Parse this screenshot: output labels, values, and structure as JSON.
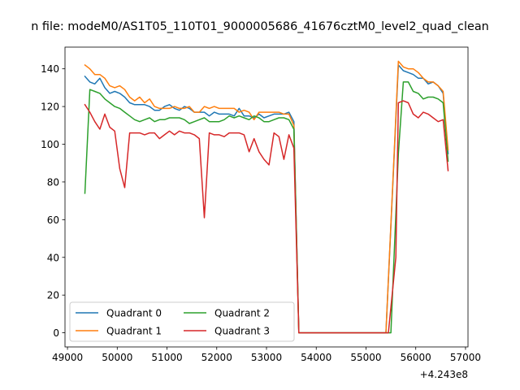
{
  "chart_data": {
    "type": "line",
    "title": "n file: modeM0/AS1T05_110T01_9000005686_41676cztM0_level2_quad_clean",
    "xlabel": "",
    "ylabel": "",
    "x_offset_label": "+4.243e8",
    "xlim": [
      48950,
      57050
    ],
    "ylim": [
      -7.5,
      151.5
    ],
    "x_ticks": [
      49000,
      50000,
      51000,
      52000,
      53000,
      54000,
      55000,
      56000,
      57000
    ],
    "x_tick_labels": [
      "49000",
      "50000",
      "51000",
      "52000",
      "53000",
      "54000",
      "55000",
      "56000",
      "57000"
    ],
    "y_ticks": [
      0,
      20,
      40,
      60,
      80,
      100,
      120,
      140
    ],
    "y_tick_labels": [
      "0",
      "20",
      "40",
      "60",
      "80",
      "100",
      "120",
      "140"
    ],
    "grid": false,
    "legend": {
      "placement": "lower-left",
      "columns": 2
    },
    "series": [
      {
        "name": "Quadrant 0",
        "color": "#1f77b4",
        "points": [
          [
            49350,
            136
          ],
          [
            49450,
            133
          ],
          [
            49550,
            132
          ],
          [
            49650,
            135
          ],
          [
            49750,
            130
          ],
          [
            49850,
            127
          ],
          [
            49950,
            128
          ],
          [
            50050,
            127
          ],
          [
            50150,
            125
          ],
          [
            50250,
            122
          ],
          [
            50350,
            121
          ],
          [
            50450,
            121
          ],
          [
            50550,
            121
          ],
          [
            50650,
            120
          ],
          [
            50750,
            118
          ],
          [
            50850,
            118
          ],
          [
            50950,
            120
          ],
          [
            51050,
            121
          ],
          [
            51150,
            119
          ],
          [
            51250,
            118
          ],
          [
            51350,
            120
          ],
          [
            51450,
            119
          ],
          [
            51550,
            117
          ],
          [
            51650,
            117
          ],
          [
            51750,
            117
          ],
          [
            51850,
            115
          ],
          [
            51950,
            117
          ],
          [
            52050,
            116
          ],
          [
            52150,
            116
          ],
          [
            52250,
            116
          ],
          [
            52350,
            115
          ],
          [
            52450,
            119
          ],
          [
            52550,
            115
          ],
          [
            52650,
            115
          ],
          [
            52750,
            114
          ],
          [
            52850,
            116
          ],
          [
            52950,
            114
          ],
          [
            53050,
            115
          ],
          [
            53150,
            116
          ],
          [
            53250,
            116
          ],
          [
            53350,
            116
          ],
          [
            53450,
            117
          ],
          [
            53550,
            112
          ],
          [
            53650,
            0
          ],
          [
            53800,
            0
          ],
          [
            54000,
            0
          ],
          [
            54200,
            0
          ],
          [
            54400,
            0
          ],
          [
            54600,
            0
          ],
          [
            54800,
            0
          ],
          [
            55000,
            0
          ],
          [
            55200,
            0
          ],
          [
            55400,
            0
          ],
          [
            55650,
            142
          ],
          [
            55750,
            139
          ],
          [
            55850,
            138
          ],
          [
            55950,
            137
          ],
          [
            56050,
            135
          ],
          [
            56150,
            135
          ],
          [
            56250,
            132
          ],
          [
            56350,
            133
          ],
          [
            56450,
            131
          ],
          [
            56550,
            127
          ],
          [
            56650,
            95
          ]
        ]
      },
      {
        "name": "Quadrant 1",
        "color": "#ff7f0e",
        "points": [
          [
            49350,
            142
          ],
          [
            49450,
            140
          ],
          [
            49550,
            137
          ],
          [
            49650,
            137
          ],
          [
            49750,
            135
          ],
          [
            49850,
            131
          ],
          [
            49950,
            130
          ],
          [
            50050,
            131
          ],
          [
            50150,
            129
          ],
          [
            50250,
            125
          ],
          [
            50350,
            123
          ],
          [
            50450,
            125
          ],
          [
            50550,
            122
          ],
          [
            50650,
            124
          ],
          [
            50750,
            120
          ],
          [
            50850,
            119
          ],
          [
            50950,
            119
          ],
          [
            51050,
            119
          ],
          [
            51150,
            120
          ],
          [
            51250,
            119
          ],
          [
            51350,
            119
          ],
          [
            51450,
            120
          ],
          [
            51550,
            117
          ],
          [
            51650,
            117
          ],
          [
            51750,
            120
          ],
          [
            51850,
            119
          ],
          [
            51950,
            120
          ],
          [
            52050,
            119
          ],
          [
            52150,
            119
          ],
          [
            52250,
            119
          ],
          [
            52350,
            119
          ],
          [
            52450,
            117
          ],
          [
            52550,
            118
          ],
          [
            52650,
            117
          ],
          [
            52750,
            113
          ],
          [
            52850,
            117
          ],
          [
            52950,
            117
          ],
          [
            53050,
            117
          ],
          [
            53150,
            117
          ],
          [
            53250,
            117
          ],
          [
            53350,
            116
          ],
          [
            53450,
            116
          ],
          [
            53550,
            110
          ],
          [
            53650,
            0
          ],
          [
            53800,
            0
          ],
          [
            54000,
            0
          ],
          [
            54200,
            0
          ],
          [
            54400,
            0
          ],
          [
            54600,
            0
          ],
          [
            54800,
            0
          ],
          [
            55000,
            0
          ],
          [
            55200,
            0
          ],
          [
            55400,
            0
          ],
          [
            55650,
            144
          ],
          [
            55750,
            141
          ],
          [
            55850,
            140
          ],
          [
            55950,
            140
          ],
          [
            56050,
            138
          ],
          [
            56150,
            135
          ],
          [
            56250,
            133
          ],
          [
            56350,
            133
          ],
          [
            56450,
            131
          ],
          [
            56550,
            128
          ],
          [
            56650,
            97
          ]
        ]
      },
      {
        "name": "Quadrant 2",
        "color": "#2ca02c",
        "points": [
          [
            49350,
            74
          ],
          [
            49450,
            129
          ],
          [
            49550,
            128
          ],
          [
            49650,
            127
          ],
          [
            49750,
            124
          ],
          [
            49850,
            122
          ],
          [
            49950,
            120
          ],
          [
            50050,
            119
          ],
          [
            50150,
            117
          ],
          [
            50250,
            115
          ],
          [
            50350,
            113
          ],
          [
            50450,
            112
          ],
          [
            50550,
            113
          ],
          [
            50650,
            114
          ],
          [
            50750,
            112
          ],
          [
            50850,
            113
          ],
          [
            50950,
            113
          ],
          [
            51050,
            114
          ],
          [
            51150,
            114
          ],
          [
            51250,
            114
          ],
          [
            51350,
            113
          ],
          [
            51450,
            111
          ],
          [
            51550,
            112
          ],
          [
            51650,
            113
          ],
          [
            51750,
            114
          ],
          [
            51850,
            112
          ],
          [
            51950,
            112
          ],
          [
            52050,
            112
          ],
          [
            52150,
            113
          ],
          [
            52250,
            115
          ],
          [
            52350,
            114
          ],
          [
            52450,
            115
          ],
          [
            52550,
            114
          ],
          [
            52650,
            113
          ],
          [
            52750,
            115
          ],
          [
            52850,
            114
          ],
          [
            52950,
            112
          ],
          [
            53050,
            112
          ],
          [
            53150,
            113
          ],
          [
            53250,
            114
          ],
          [
            53350,
            114
          ],
          [
            53450,
            113
          ],
          [
            53550,
            108
          ],
          [
            53650,
            0
          ],
          [
            53800,
            0
          ],
          [
            54000,
            0
          ],
          [
            54200,
            0
          ],
          [
            54400,
            0
          ],
          [
            54600,
            0
          ],
          [
            54800,
            0
          ],
          [
            55000,
            0
          ],
          [
            55200,
            0
          ],
          [
            55400,
            0
          ],
          [
            55500,
            0
          ],
          [
            55650,
            95
          ],
          [
            55750,
            133
          ],
          [
            55850,
            133
          ],
          [
            55950,
            128
          ],
          [
            56050,
            127
          ],
          [
            56150,
            124
          ],
          [
            56250,
            125
          ],
          [
            56350,
            125
          ],
          [
            56450,
            124
          ],
          [
            56550,
            122
          ],
          [
            56650,
            91
          ]
        ]
      },
      {
        "name": "Quadrant 3",
        "color": "#d62728",
        "points": [
          [
            49350,
            121
          ],
          [
            49450,
            117
          ],
          [
            49550,
            112
          ],
          [
            49650,
            108
          ],
          [
            49750,
            116
          ],
          [
            49850,
            109
          ],
          [
            49950,
            107
          ],
          [
            50050,
            87
          ],
          [
            50150,
            77
          ],
          [
            50250,
            106
          ],
          [
            50350,
            106
          ],
          [
            50450,
            106
          ],
          [
            50550,
            105
          ],
          [
            50650,
            106
          ],
          [
            50750,
            106
          ],
          [
            50850,
            103
          ],
          [
            50950,
            105
          ],
          [
            51050,
            107
          ],
          [
            51150,
            105
          ],
          [
            51250,
            107
          ],
          [
            51350,
            106
          ],
          [
            51450,
            106
          ],
          [
            51550,
            105
          ],
          [
            51650,
            103
          ],
          [
            51750,
            61
          ],
          [
            51850,
            106
          ],
          [
            51950,
            105
          ],
          [
            52050,
            105
          ],
          [
            52150,
            104
          ],
          [
            52250,
            106
          ],
          [
            52350,
            106
          ],
          [
            52450,
            106
          ],
          [
            52550,
            105
          ],
          [
            52650,
            96
          ],
          [
            52750,
            103
          ],
          [
            52850,
            96
          ],
          [
            52950,
            92
          ],
          [
            53050,
            89
          ],
          [
            53150,
            106
          ],
          [
            53250,
            104
          ],
          [
            53350,
            92
          ],
          [
            53450,
            105
          ],
          [
            53550,
            98
          ],
          [
            53650,
            0
          ],
          [
            53800,
            0
          ],
          [
            54000,
            0
          ],
          [
            54200,
            0
          ],
          [
            54400,
            0
          ],
          [
            54600,
            0
          ],
          [
            54800,
            0
          ],
          [
            55000,
            0
          ],
          [
            55200,
            0
          ],
          [
            55450,
            0
          ],
          [
            55600,
            40
          ],
          [
            55650,
            122
          ],
          [
            55750,
            123
          ],
          [
            55850,
            122
          ],
          [
            55950,
            116
          ],
          [
            56050,
            114
          ],
          [
            56150,
            117
          ],
          [
            56250,
            116
          ],
          [
            56350,
            114
          ],
          [
            56450,
            112
          ],
          [
            56550,
            113
          ],
          [
            56650,
            86
          ]
        ]
      }
    ]
  }
}
